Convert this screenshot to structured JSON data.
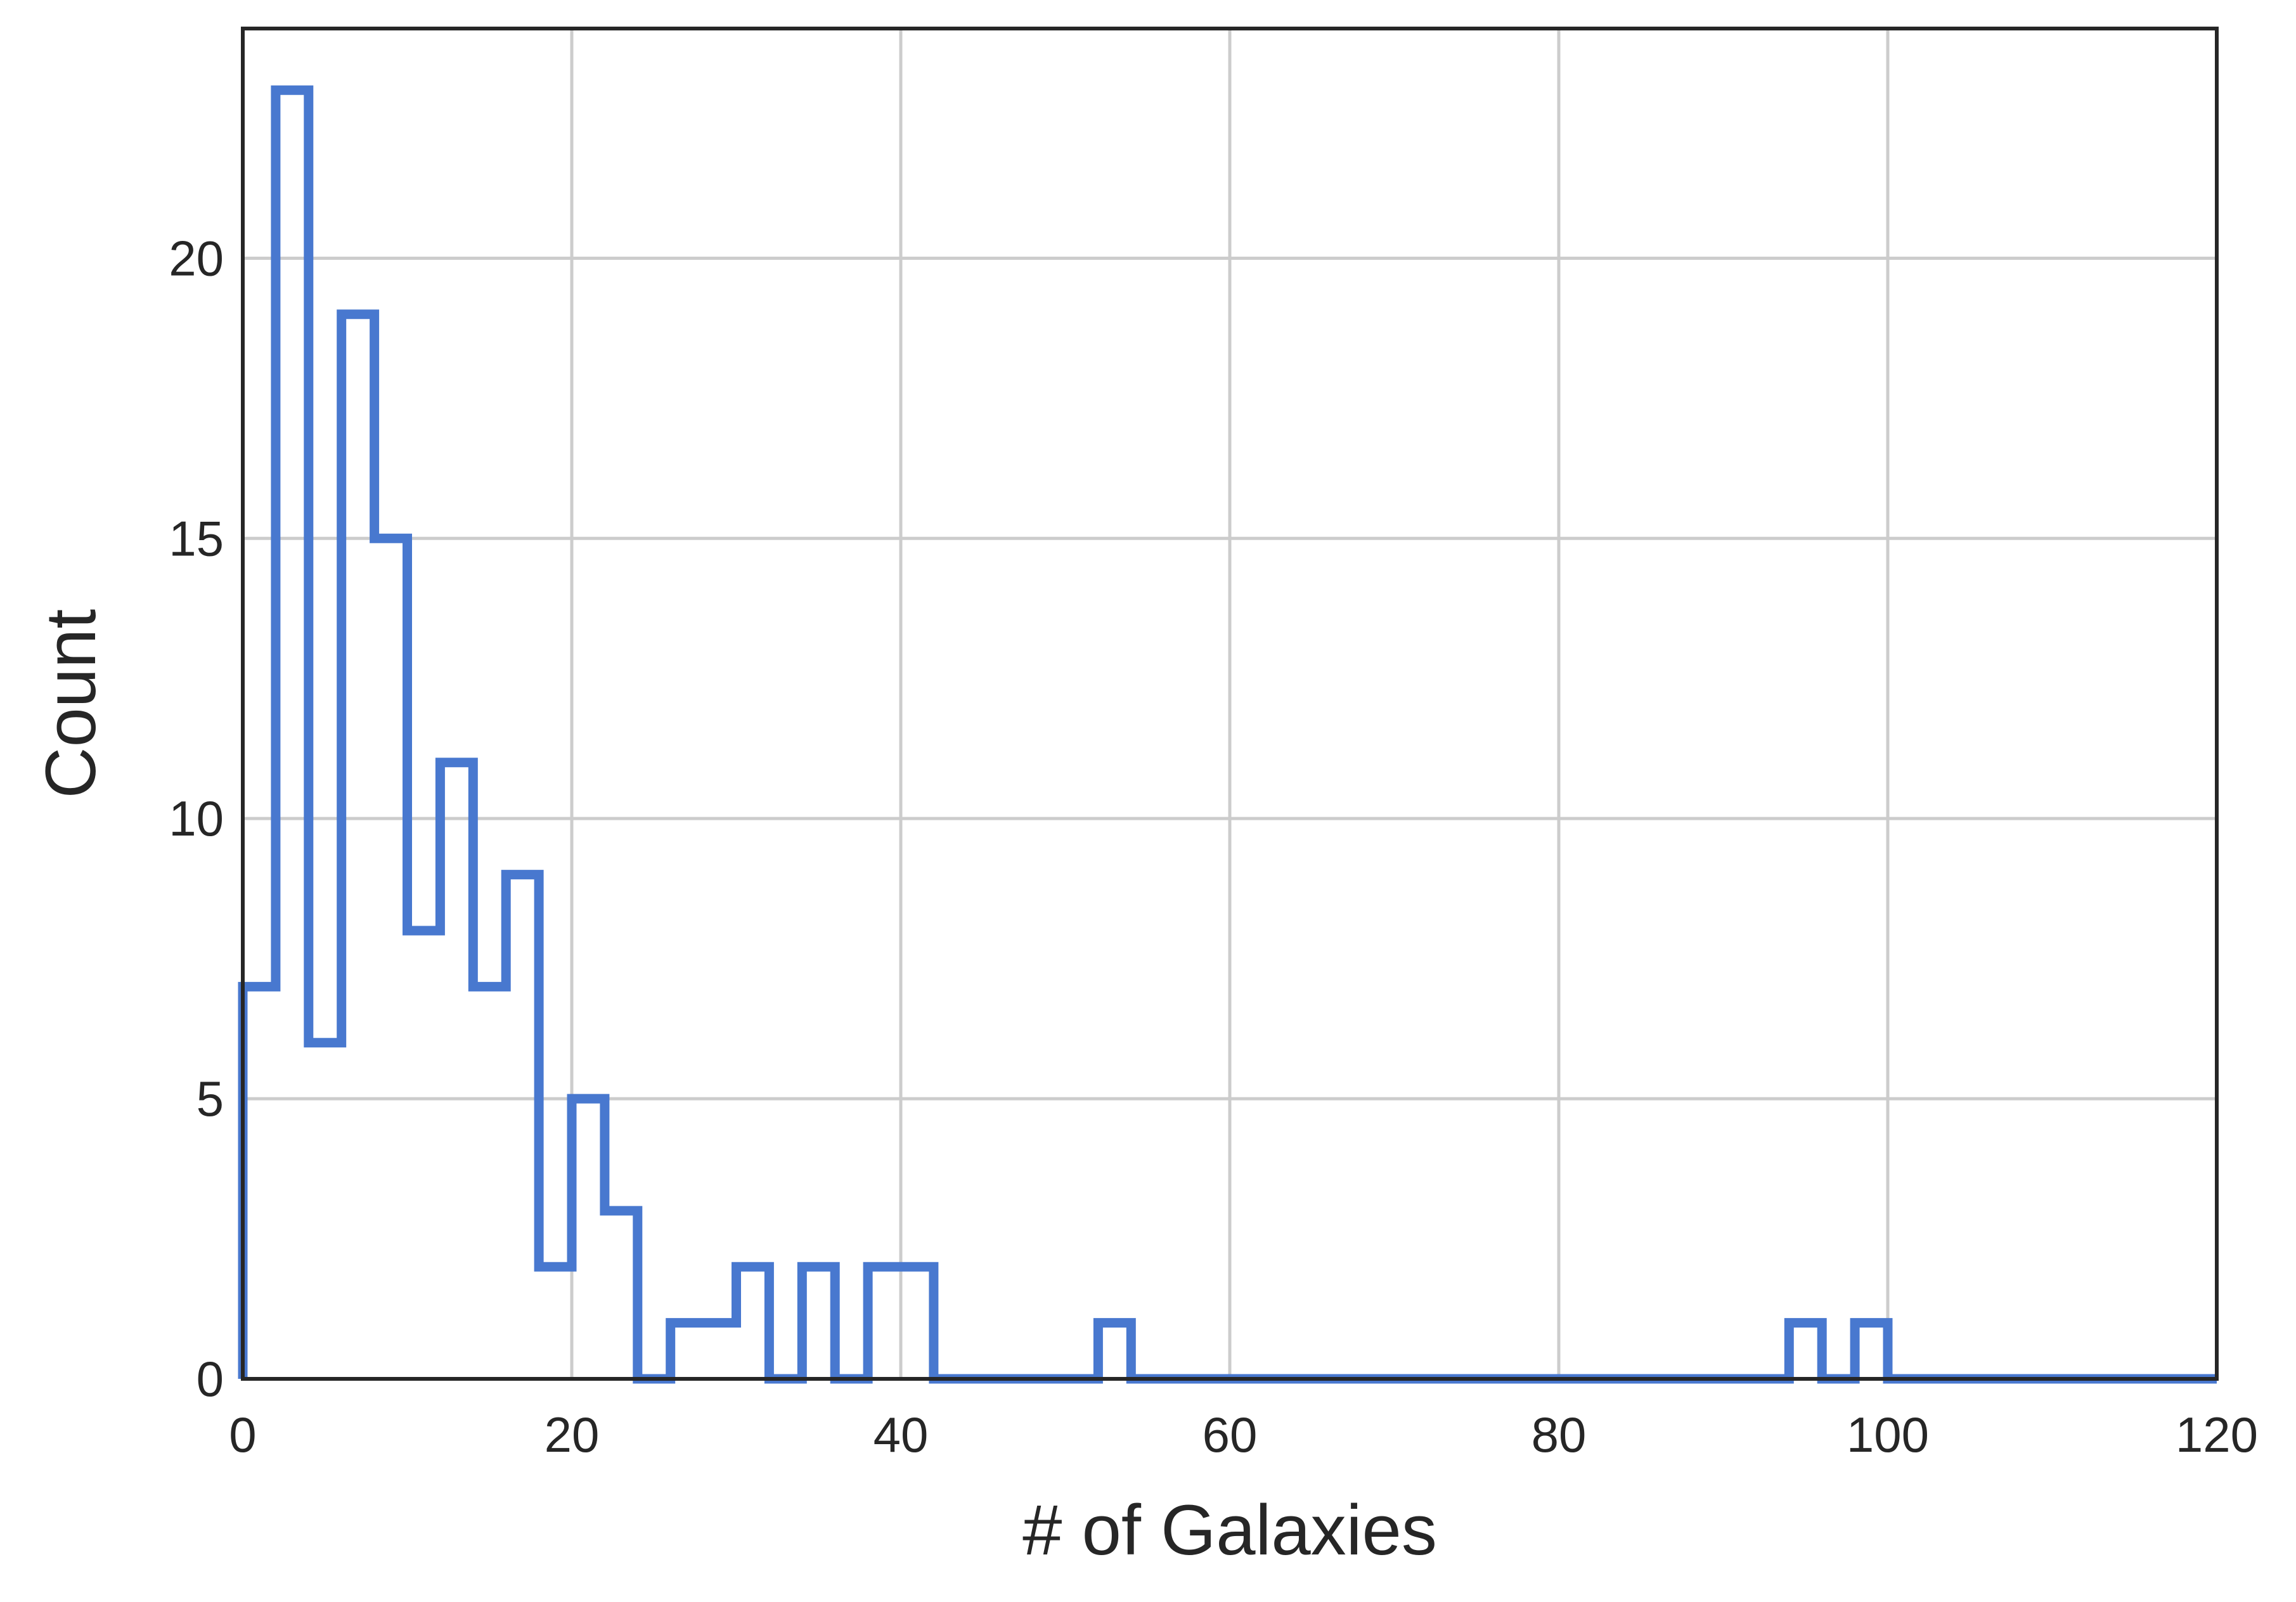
{
  "chart_data": {
    "type": "histogram",
    "histtype": "step",
    "xlabel": "# of Galaxies",
    "ylabel": "Count",
    "xlim": [
      0,
      120
    ],
    "ylim": [
      0,
      24.1
    ],
    "xticks": [
      0,
      20,
      40,
      60,
      80,
      100,
      120
    ],
    "yticks": [
      0,
      5,
      10,
      15,
      20
    ],
    "grid": true,
    "bin_edges": [
      0,
      2,
      4,
      6,
      8,
      10,
      12,
      14,
      16,
      18,
      20,
      22,
      24,
      26,
      28,
      30,
      32,
      34,
      36,
      38,
      40,
      42,
      44,
      46,
      48,
      50,
      52,
      54,
      56,
      58,
      60,
      62,
      64,
      66,
      68,
      70,
      72,
      74,
      76,
      78,
      80,
      82,
      84,
      86,
      88,
      90,
      92,
      94,
      96,
      98,
      100,
      102,
      104,
      106,
      108,
      110,
      112,
      114,
      116,
      118,
      120
    ],
    "counts": [
      7,
      23,
      6,
      19,
      15,
      8,
      11,
      7,
      9,
      2,
      5,
      3,
      0,
      1,
      1,
      2,
      0,
      2,
      0,
      2,
      2,
      0,
      0,
      0,
      0,
      0,
      1,
      0,
      0,
      0,
      0,
      0,
      0,
      0,
      0,
      0,
      0,
      0,
      0,
      0,
      0,
      0,
      0,
      0,
      0,
      0,
      0,
      1,
      0,
      1,
      0,
      0,
      0,
      0,
      0,
      0,
      0,
      0,
      0,
      0
    ],
    "colors": {
      "line": "#4878cf",
      "grid": "#cccccc",
      "frame": "#262626",
      "text": "#262626"
    }
  }
}
